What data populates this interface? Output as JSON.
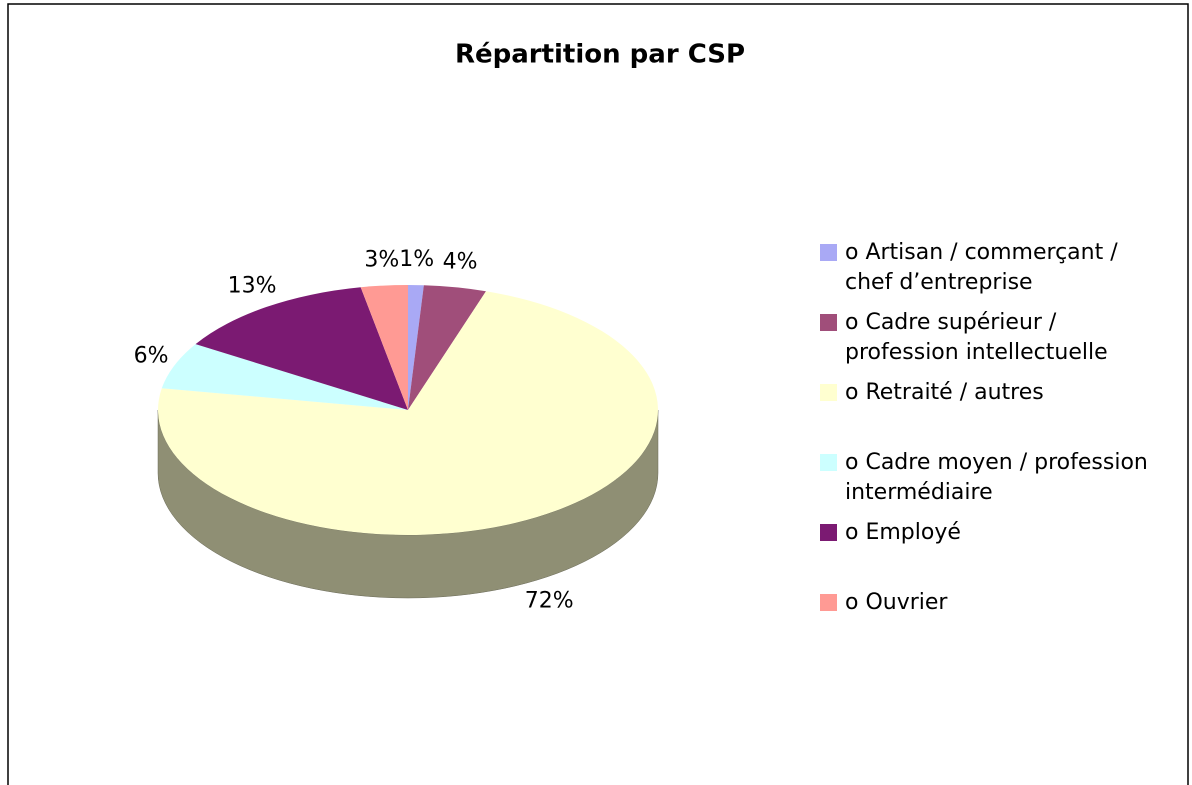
{
  "chart_data": {
    "type": "pie",
    "title": "Répartition par CSP",
    "categories": [
      "o Artisan / commerçant / chef d’entreprise",
      "o Cadre supérieur / profession intellectuelle",
      "o Retraité / autres",
      "o Cadre moyen / profession intermédiaire",
      "o Employé",
      "o Ouvrier"
    ],
    "values": [
      1,
      4,
      72,
      6,
      13,
      3
    ],
    "value_labels": [
      "1%",
      "4%",
      "72%",
      "6%",
      "13%",
      "3%"
    ],
    "colors": [
      "#a9a9f5",
      "#a04e7a",
      "#ffffd0",
      "#ccffff",
      "#7b1a72",
      "#ff9a94"
    ],
    "legend": "right"
  }
}
